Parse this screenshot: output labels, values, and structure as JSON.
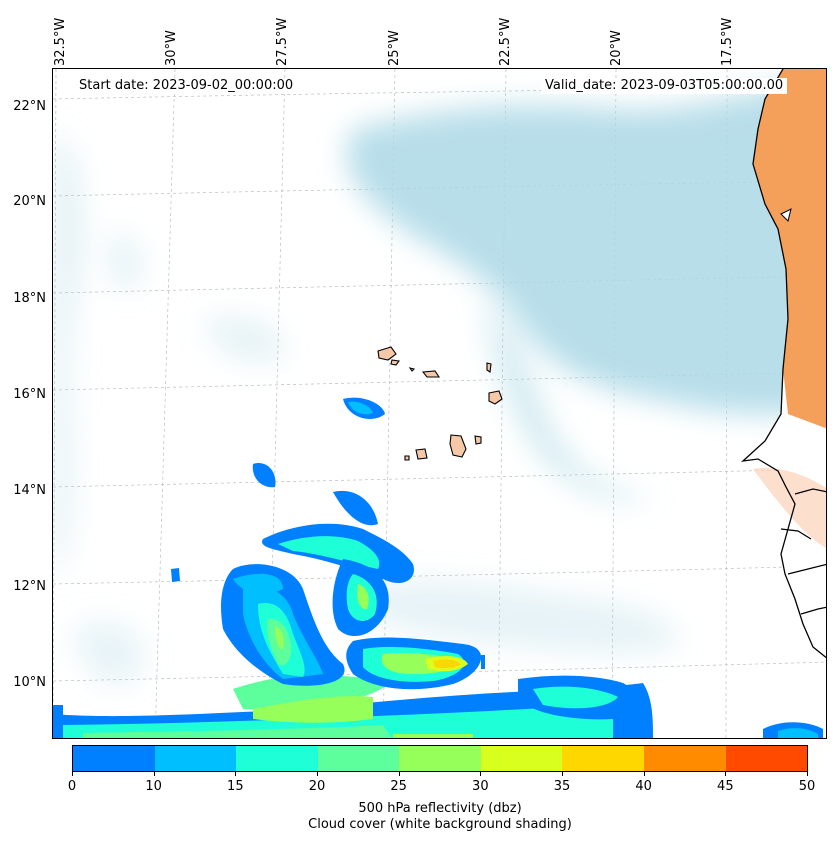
{
  "header": {
    "start_date": "Start date: 2023-09-02_00:00:00",
    "valid_date": "Valid_date: 2023-09-03T05:00:00.00"
  },
  "longitude_labels": [
    "32.5°W",
    "30°W",
    "27.5°W",
    "25°W",
    "22.5°W",
    "20°W",
    "17.5°W"
  ],
  "latitude_labels": [
    "22°N",
    "20°N",
    "18°N",
    "16°N",
    "14°N",
    "12°N",
    "10°N"
  ],
  "colorbar": {
    "colors": [
      "#007fff",
      "#00bfff",
      "#1effd8",
      "#5cff9b",
      "#96ff5a",
      "#d9ff1f",
      "#ffd700",
      "#ff8b00",
      "#ff4a00"
    ],
    "ticks": [
      "0",
      "10",
      "15",
      "20",
      "25",
      "30",
      "35",
      "40",
      "45",
      "50"
    ],
    "label": "500 hPa reflectivity (dbz)",
    "sublabel": "Cloud cover (white background shading)"
  },
  "map_colors": {
    "cloud": "#acd8e6",
    "land": "#f5a05a",
    "islands": "#f5c8a8",
    "coastline": "#000000"
  }
}
